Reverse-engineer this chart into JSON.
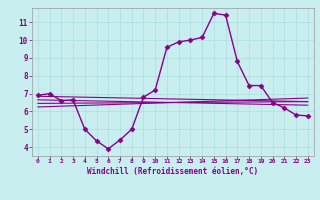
{
  "title": "",
  "xlabel": "Windchill (Refroidissement éolien,°C)",
  "ylabel": "",
  "background_color": "#c8eef0",
  "grid_color": "#b0dde0",
  "line_color": "#880088",
  "xlim": [
    -0.5,
    23.5
  ],
  "ylim": [
    3.5,
    11.8
  ],
  "xticks": [
    0,
    1,
    2,
    3,
    4,
    5,
    6,
    7,
    8,
    9,
    10,
    11,
    12,
    13,
    14,
    15,
    16,
    17,
    18,
    19,
    20,
    21,
    22,
    23
  ],
  "yticks": [
    4,
    5,
    6,
    7,
    8,
    9,
    10,
    11
  ],
  "main_x": [
    0,
    1,
    2,
    3,
    4,
    5,
    6,
    7,
    8,
    9,
    10,
    11,
    12,
    13,
    14,
    15,
    16,
    17,
    18,
    19,
    20,
    21,
    22,
    23
  ],
  "main_y": [
    6.9,
    7.0,
    6.6,
    6.65,
    5.0,
    4.35,
    3.9,
    4.4,
    5.0,
    6.8,
    7.2,
    9.6,
    9.9,
    10.0,
    10.15,
    11.5,
    11.4,
    8.8,
    7.45,
    7.45,
    6.5,
    6.2,
    5.8,
    5.75
  ],
  "flat_lines": [
    {
      "x0": 0,
      "x1": 23,
      "y0": 6.85,
      "y1": 6.55
    },
    {
      "x0": 0,
      "x1": 23,
      "y0": 6.65,
      "y1": 6.35
    },
    {
      "x0": 0,
      "x1": 23,
      "y0": 6.45,
      "y1": 6.55
    },
    {
      "x0": 0,
      "x1": 23,
      "y0": 6.25,
      "y1": 6.75
    }
  ]
}
